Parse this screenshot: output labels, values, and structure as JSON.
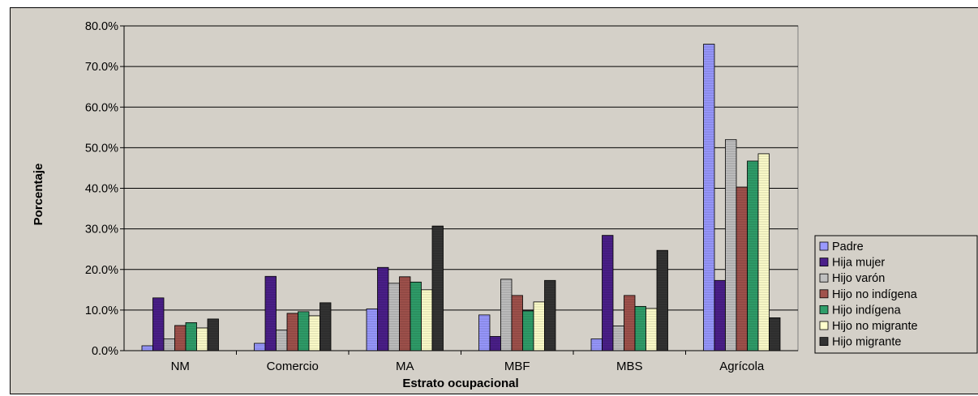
{
  "chart_data": {
    "type": "bar",
    "title": "",
    "xlabel": "Estrato ocupacional",
    "ylabel": "Porcentaje",
    "ylim": [
      0,
      80
    ],
    "yticks": [
      "0.0%",
      "10.0%",
      "20.0%",
      "30.0%",
      "40.0%",
      "50.0%",
      "60.0%",
      "70.0%",
      "80.0%"
    ],
    "grid": true,
    "legend_position": "right",
    "categories": [
      "NM",
      "Comercio",
      "MA",
      "MBF",
      "MBS",
      "Agrícola"
    ],
    "series": [
      {
        "name": "Padre",
        "color": "#9999ff",
        "values": [
          1.2,
          1.8,
          10.3,
          8.8,
          2.9,
          75.5
        ]
      },
      {
        "name": "Hija mujer",
        "color": "#4b1f8a",
        "values": [
          13.0,
          18.3,
          20.5,
          3.5,
          28.4,
          17.3
        ]
      },
      {
        "name": "Hijo varón",
        "color": "#c0c0c0",
        "values": [
          2.9,
          5.1,
          16.6,
          17.6,
          6.1,
          52.0
        ]
      },
      {
        "name": "Hijo no indígena",
        "color": "#a0524c",
        "values": [
          6.2,
          9.2,
          18.2,
          13.6,
          13.6,
          40.3
        ]
      },
      {
        "name": "Hijo indígena",
        "color": "#2f9e6a",
        "values": [
          6.9,
          9.6,
          16.9,
          9.8,
          10.9,
          46.7
        ]
      },
      {
        "name": "Hijo no migrante",
        "color": "#ffffcc",
        "values": [
          5.6,
          8.6,
          15.0,
          12.0,
          10.4,
          48.5
        ]
      },
      {
        "name": "Hijo migrante",
        "color": "#333333",
        "values": [
          7.8,
          11.8,
          30.7,
          17.3,
          24.7,
          8.1
        ]
      }
    ]
  }
}
